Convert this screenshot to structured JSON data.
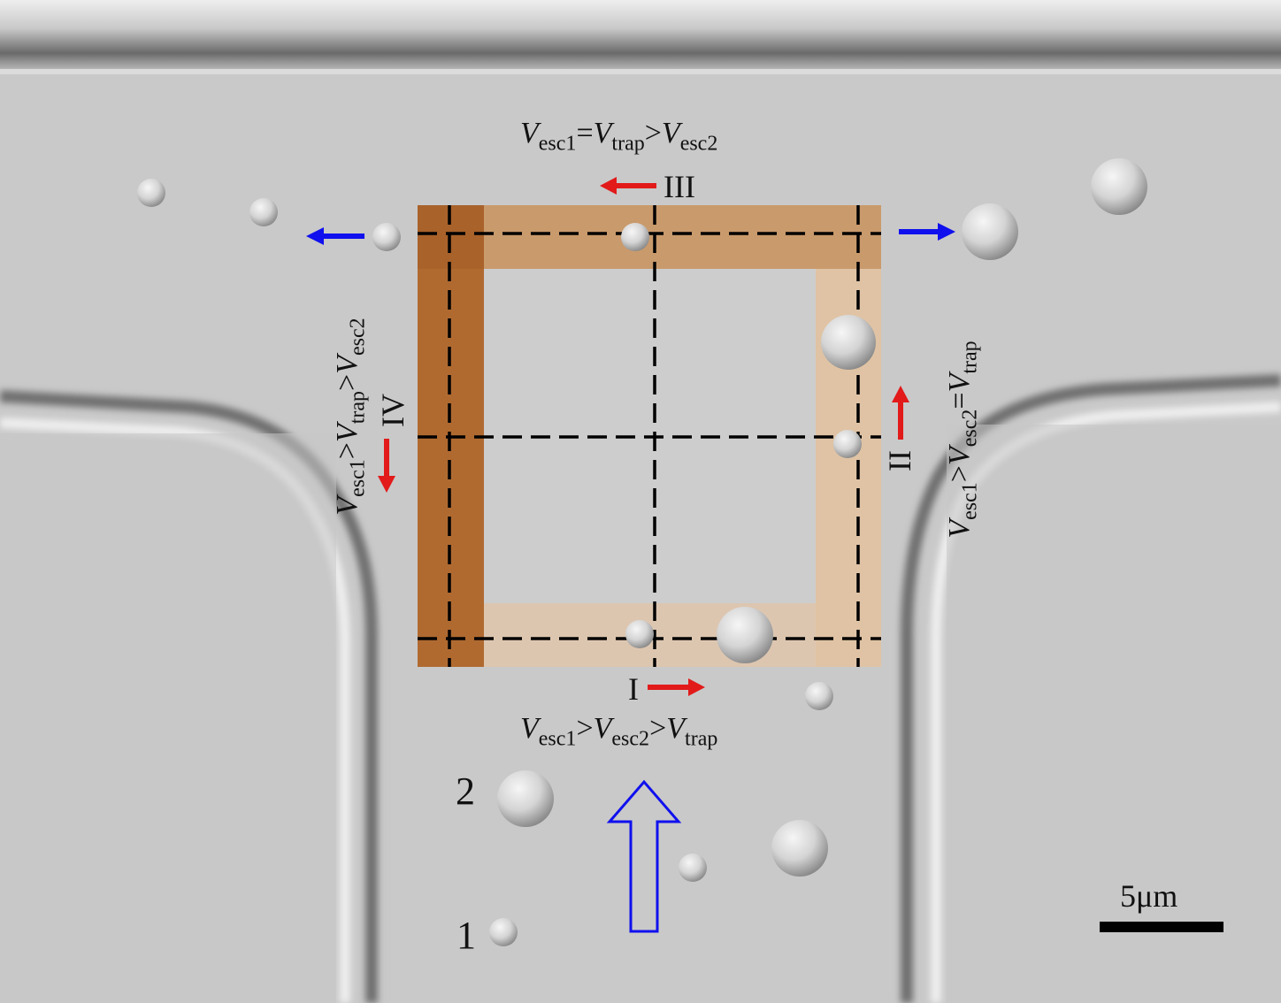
{
  "figure": {
    "regions": {
      "I": {
        "numeral": "I",
        "condition": [
          {
            "v": "V",
            "sub": "esc1"
          },
          {
            "op": ">"
          },
          {
            "v": "V",
            "sub": "esc2"
          },
          {
            "op": ">"
          },
          {
            "v": "V",
            "sub": "trap"
          }
        ]
      },
      "II": {
        "numeral": "II",
        "condition": [
          {
            "v": "V",
            "sub": "esc1"
          },
          {
            "op": ">"
          },
          {
            "v": "V",
            "sub": "esc2"
          },
          {
            "op": "="
          },
          {
            "v": "V",
            "sub": "trap"
          }
        ]
      },
      "III": {
        "numeral": "III",
        "condition": [
          {
            "v": "V",
            "sub": "esc1"
          },
          {
            "op": "="
          },
          {
            "v": "V",
            "sub": "trap"
          },
          {
            "op": ">"
          },
          {
            "v": "V",
            "sub": "esc2"
          }
        ]
      },
      "IV": {
        "numeral": "IV",
        "condition": [
          {
            "v": "V",
            "sub": "esc1"
          },
          {
            "op": ">"
          },
          {
            "v": "V",
            "sub": "trap"
          },
          {
            "op": ">"
          },
          {
            "v": "V",
            "sub": "esc2"
          }
        ]
      }
    },
    "particle_labels": {
      "p1": "1",
      "p2": "2"
    },
    "scale_bar": {
      "label": "5μm"
    },
    "colors": {
      "background": "#c8c8c8",
      "trap_band_dark": "#b06a30",
      "trap_band_light": "#d7a67a",
      "flow_arrow": "#1010ee",
      "motion_arrow": "#e21a1a",
      "grid_line": "#000000"
    }
  }
}
